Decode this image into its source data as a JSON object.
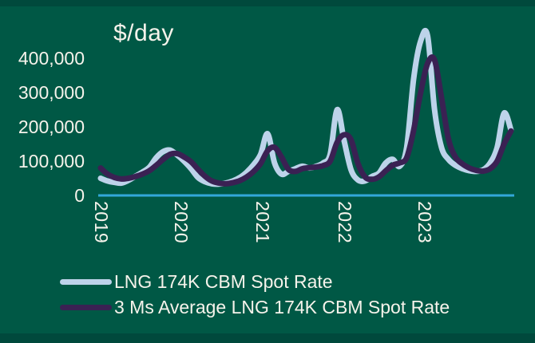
{
  "title": "$/day",
  "colors": {
    "background": "#005845",
    "edge_band": "#00493C",
    "spot_line": "#BDD3EA",
    "avg_line": "#3A2153",
    "axis_line": "#33A7DA",
    "text": "#F6F3EB"
  },
  "legend": {
    "items": [
      {
        "id": "spot",
        "label": "LNG 174K CBM Spot Rate"
      },
      {
        "id": "avg",
        "label": "3 Ms Average LNG 174K CBM Spot Rate"
      }
    ]
  },
  "chart_data": {
    "type": "line",
    "title": "$/day",
    "unit": "$/day",
    "x_start": "2019-01",
    "x_freq": "monthly",
    "x_tick_labels": [
      "2019",
      "2020",
      "2021",
      "2022",
      "2023"
    ],
    "y_tick_values": [
      0,
      100000,
      200000,
      300000,
      400000
    ],
    "y_tick_labels": [
      "0",
      "100,000",
      "200,000",
      "300,000",
      "400,000"
    ],
    "ylim": [
      0,
      480000
    ],
    "grid": false,
    "legend_position": "bottom-left",
    "series": [
      {
        "name": "LNG 174K CBM Spot Rate",
        "color_key": "spot_line",
        "values": [
          50000,
          42000,
          38000,
          36000,
          44000,
          56000,
          68000,
          82000,
          110000,
          128000,
          132000,
          118000,
          100000,
          78000,
          52000,
          40000,
          34000,
          33000,
          36000,
          42000,
          52000,
          68000,
          90000,
          120000,
          180000,
          95000,
          62000,
          70000,
          78000,
          85000,
          80000,
          85000,
          95000,
          120000,
          250000,
          160000,
          75000,
          45000,
          42000,
          55000,
          65000,
          95000,
          105000,
          85000,
          140000,
          340000,
          450000,
          465000,
          250000,
          140000,
          105000,
          88000,
          78000,
          72000,
          70000,
          75000,
          95000,
          140000,
          240000,
          190000
        ]
      },
      {
        "name": "3 Ms Average LNG 174K CBM Spot Rate",
        "color_key": "avg_line",
        "values": [
          80000,
          62000,
          52000,
          48000,
          50000,
          55000,
          62000,
          72000,
          88000,
          105000,
          120000,
          122000,
          112000,
          98000,
          76000,
          56000,
          42000,
          36000,
          34000,
          37000,
          43000,
          54000,
          70000,
          93000,
          130000,
          140000,
          112000,
          76000,
          70000,
          78000,
          81000,
          83000,
          87000,
          100000,
          155000,
          177000,
          162000,
          93000,
          54000,
          47000,
          54000,
          72000,
          88000,
          95000,
          110000,
          190000,
          300000,
          385000,
          395000,
          285000,
          165000,
          112000,
          92000,
          80000,
          73000,
          71000,
          78000,
          100000,
          150000,
          188000
        ]
      }
    ]
  }
}
